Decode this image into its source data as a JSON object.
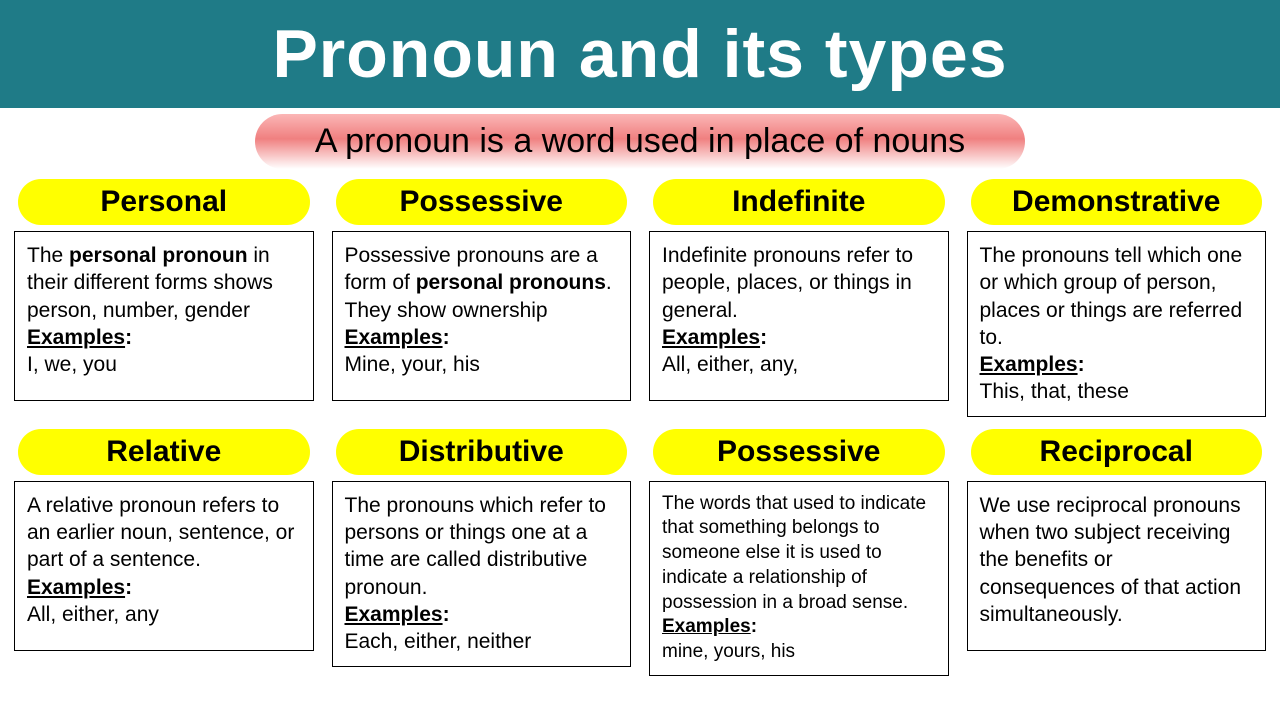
{
  "colors": {
    "header_bg": "#1f7b87",
    "header_text": "#ffffff",
    "subtitle_gradient_top": "#fbb6b6",
    "subtitle_gradient_mid": "#f08080",
    "subtitle_gradient_bottom": "#ffffff",
    "subtitle_text": "#000000",
    "pill_bg": "#ffff00",
    "pill_text": "#000000",
    "box_border": "#000000",
    "body_text": "#000000"
  },
  "typography": {
    "header_fontsize": 68,
    "subtitle_fontsize": 34,
    "pill_fontsize": 30,
    "body_fontsize": 21,
    "body_fontsize_small": 19
  },
  "header": {
    "title": "Pronoun and its types"
  },
  "subtitle": "A pronoun is a word used in place of nouns",
  "labels": {
    "examples": "Examples"
  },
  "cards": [
    {
      "title": "Personal",
      "desc_pre": "The ",
      "desc_bold": "personal pronoun",
      "desc_post": " in their different forms shows person, number, gender",
      "examples": "I, we, you",
      "small": false
    },
    {
      "title": "Possessive",
      "desc_pre": "Possessive pronouns are a form of ",
      "desc_bold": "personal pronouns",
      "desc_post": ". They show ownership",
      "examples": "Mine, your, his",
      "small": false
    },
    {
      "title": "Indefinite",
      "desc_pre": "Indefinite pronouns refer to people, places, or things in general.",
      "desc_bold": "",
      "desc_post": "",
      "examples": "All, either, any,",
      "small": false
    },
    {
      "title": "Demonstrative",
      "desc_pre": "The pronouns tell which one or which group of person, places or things are referred to.",
      "desc_bold": "",
      "desc_post": "",
      "examples": "This, that, these",
      "small": false
    },
    {
      "title": "Relative",
      "desc_pre": "A relative pronoun refers to an earlier noun, sentence, or part of a sentence.",
      "desc_bold": "",
      "desc_post": "",
      "examples": "All, either, any",
      "small": false
    },
    {
      "title": "Distributive",
      "desc_pre": "The pronouns which refer to persons or things one at a time are called distributive pronoun.",
      "desc_bold": "",
      "desc_post": "",
      "examples": "Each, either, neither",
      "small": false
    },
    {
      "title": "Possessive",
      "desc_pre": "The words that used to indicate that something belongs to someone else it is used to indicate a relationship of possession in a broad sense.",
      "desc_bold": "",
      "desc_post": "",
      "examples": "mine, yours, his",
      "small": true
    },
    {
      "title": "Reciprocal",
      "desc_pre": "We use reciprocal pronouns when two subject receiving the benefits or consequences of that action simultaneously.",
      "desc_bold": "",
      "desc_post": "",
      "examples": "",
      "small": false
    }
  ]
}
